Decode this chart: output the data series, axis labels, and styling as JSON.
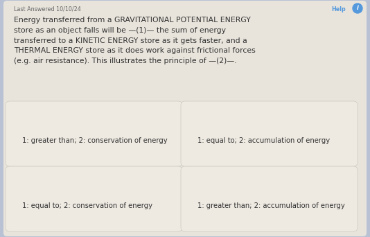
{
  "bg_color": "#b8c2d4",
  "panel_color": "#e8e4dc",
  "card_color": "#eeeae2",
  "card_border_color": "#cccac0",
  "top_label": "Last Answered 10/10/24",
  "help_label": "Help",
  "main_text_lines": [
    "Energy transferred from a GRAVITATIONAL POTENTIAL ENERGY",
    "store as an object falls will be —(1)— the sum of energy",
    "transferred to a KINETIC ENERGY store as it gets faster, and a",
    "THERMAL ENERGY store as it does work against frictional forces",
    "(e.g. air resistance). This illustrates the principle of —(2)—."
  ],
  "options": [
    [
      "1: greater than; 2: conservation of energy",
      "1: equal to; 2: accumulation of energy"
    ],
    [
      "1: equal to; 2: conservation of energy",
      "1: greater than; 2: accumulation of energy"
    ]
  ],
  "title_fontsize": 7.8,
  "meta_fontsize": 5.8,
  "option_fontsize": 7.2,
  "text_color": "#333333",
  "meta_color": "#666666",
  "help_color": "#5599dd"
}
